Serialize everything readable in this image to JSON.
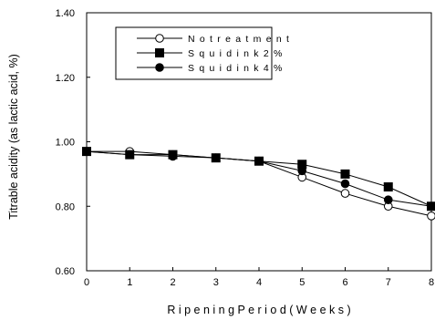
{
  "chart_data": {
    "type": "line",
    "xlabel": "R i p e n i n g   P e r i o d   ( W e e k s )",
    "ylabel": "Titrable acidity (as lactic acid, %)",
    "xlim": [
      0,
      8
    ],
    "ylim": [
      0.6,
      1.4
    ],
    "x": [
      0,
      1,
      2,
      3,
      4,
      5,
      6,
      7,
      8
    ],
    "x_ticks": [
      "0",
      "1",
      "2",
      "3",
      "4",
      "5",
      "6",
      "7",
      "8"
    ],
    "y_ticks": [
      "0.60",
      "0.80",
      "1.00",
      "1.20",
      "1.40"
    ],
    "grid": false,
    "legend_position": "top-left",
    "series": [
      {
        "name": "N o   t r e a t m e n t",
        "marker": "circle-open",
        "values": [
          0.97,
          0.97,
          0.96,
          0.95,
          0.94,
          0.89,
          0.84,
          0.8,
          0.77
        ]
      },
      {
        "name": "S q u i d   i n k   2 %",
        "marker": "square-filled",
        "values": [
          0.97,
          0.96,
          0.96,
          0.95,
          0.94,
          0.93,
          0.9,
          0.86,
          0.8
        ]
      },
      {
        "name": "S q u i d   i n k   4 %",
        "marker": "circle-filled",
        "values": [
          0.97,
          0.96,
          0.955,
          0.95,
          0.94,
          0.91,
          0.87,
          0.82,
          0.8
        ]
      }
    ]
  }
}
